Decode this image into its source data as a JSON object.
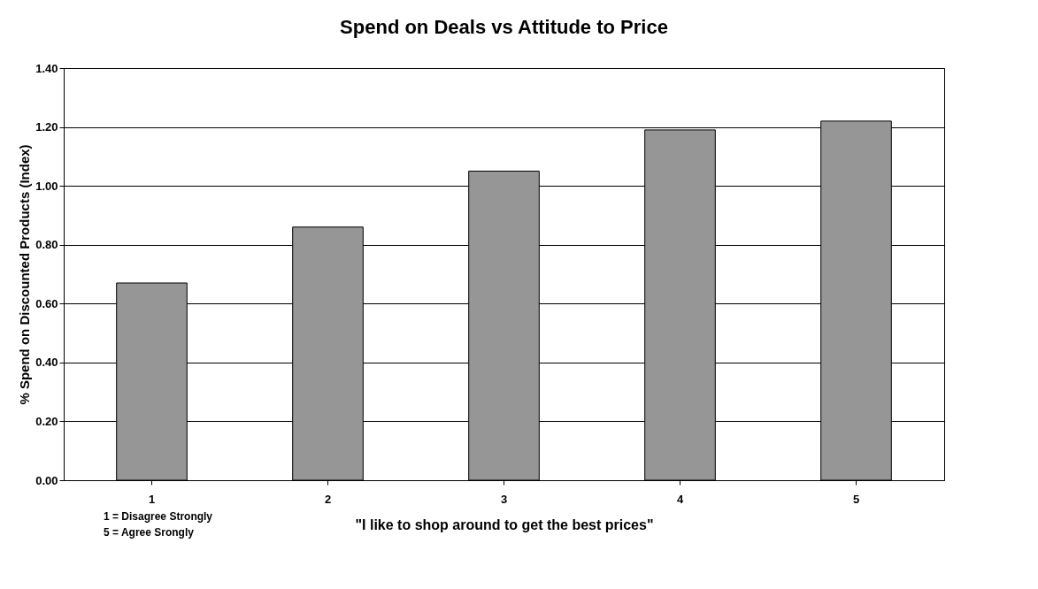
{
  "chart_data": {
    "type": "bar",
    "title": "Spend on Deals vs Attitude to Price",
    "xlabel": "\"I like to shop around to get the best prices\"",
    "ylabel": "% Spend on Discounted Products (Index)",
    "categories": [
      "1",
      "2",
      "3",
      "4",
      "5"
    ],
    "values": [
      0.67,
      0.86,
      1.05,
      1.19,
      1.22
    ],
    "color": "#969696",
    "ylim": [
      0,
      1.4
    ],
    "yticks": [
      {
        "value": 0,
        "label": "0.00"
      },
      {
        "value": 0.2,
        "label": "0.20"
      },
      {
        "value": 0.4,
        "label": "0.40"
      },
      {
        "value": 0.6,
        "label": "0.60"
      },
      {
        "value": 0.8,
        "label": "0.80"
      },
      {
        "value": 1.0,
        "label": "1.00"
      },
      {
        "value": 1.2,
        "label": "1.20"
      },
      {
        "value": 1.4,
        "label": "1.40"
      }
    ],
    "grid": "y",
    "annotations": [
      "1 = Disagree Strongly",
      "5 = Agree Srongly"
    ]
  }
}
